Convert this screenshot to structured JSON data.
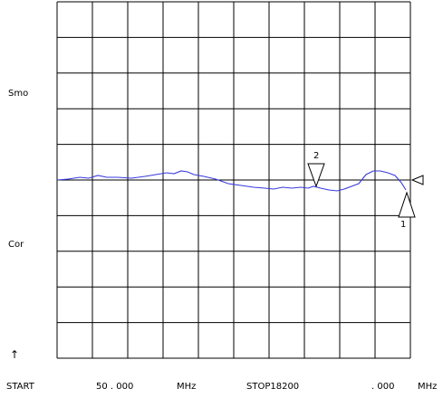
{
  "side_labels": {
    "upper": "Smo",
    "lower": "Cor",
    "arrow": "↑"
  },
  "footer": {
    "start_label": "START",
    "start_value": "50 . 000",
    "start_unit": "MHz",
    "stop_label": "STOP18200",
    "stop_value": ". 000",
    "stop_unit": "MHz"
  },
  "markers": [
    {
      "label": "2"
    },
    {
      "label": "1"
    }
  ],
  "colors": {
    "trace": "#3a3ae0",
    "grid": "#000000",
    "background": "#ffffff"
  }
}
